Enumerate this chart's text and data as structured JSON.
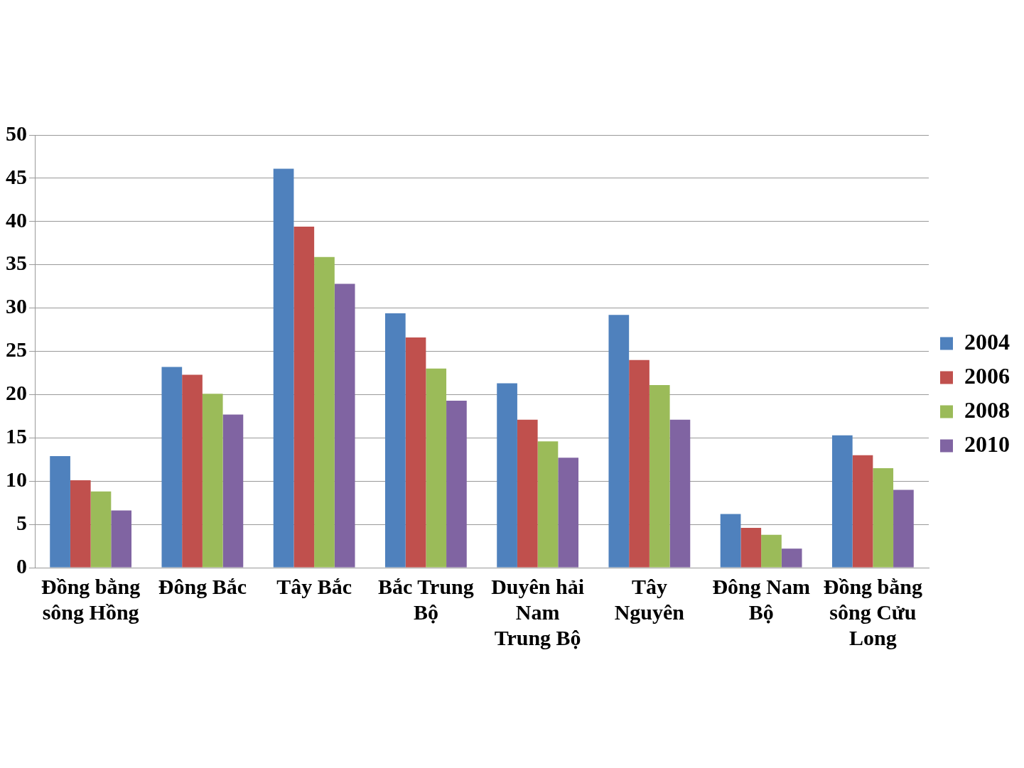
{
  "chart_data": {
    "type": "bar",
    "categories": [
      "Đồng bằng sông Hồng",
      "Đông Bắc",
      "Tây Bắc",
      "Bắc Trung Bộ",
      "Duyên hải Nam Trung Bộ",
      "Tây Nguyên",
      "Đông Nam Bộ",
      "Đồng bằng sông Cửu Long"
    ],
    "series": [
      {
        "name": "2004",
        "color": "#4f81bd",
        "values": [
          12.9,
          23.2,
          46.1,
          29.4,
          21.3,
          29.2,
          6.2,
          15.3
        ]
      },
      {
        "name": "2006",
        "color": "#c0504d",
        "values": [
          10.1,
          22.3,
          39.4,
          26.6,
          17.1,
          24.0,
          4.6,
          13.0
        ]
      },
      {
        "name": "2008",
        "color": "#9bbb59",
        "values": [
          8.8,
          20.1,
          35.9,
          23.0,
          14.6,
          21.1,
          3.8,
          11.5
        ]
      },
      {
        "name": "2010",
        "color": "#8064a2",
        "values": [
          6.6,
          17.7,
          32.8,
          19.3,
          12.7,
          17.1,
          2.2,
          9.0
        ]
      }
    ],
    "ylim": [
      0,
      50
    ],
    "yticks": [
      0,
      5,
      10,
      15,
      20,
      25,
      30,
      35,
      40,
      45,
      50
    ],
    "grid": "y",
    "legend": "right"
  }
}
